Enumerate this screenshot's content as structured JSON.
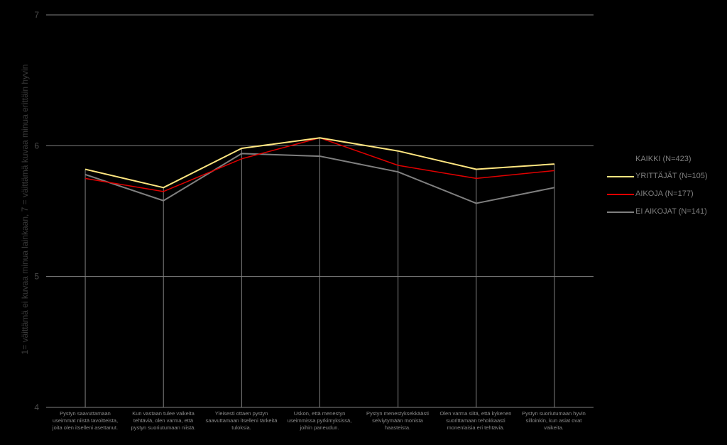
{
  "chart_data": {
    "type": "line",
    "ylabel": "1= väittämä ei kuvaa minua lainkaan, 7 = väittämä kuvaa minua erittäin hyvin",
    "xlabel": "",
    "ylim": [
      4,
      7
    ],
    "yticks": [
      "4",
      "5",
      "6",
      "7"
    ],
    "grid": true,
    "legend_position": "right",
    "categories": [
      "Pystyn saavuttamaan useimmat niistä tavoitteista, joita olen itselleni asettanut.",
      "Kun vastaan tulee vaikeita tehtäviä, olen varma, että pystyn suoriutumaan niistä.",
      "Yleisesti ottaen pystyn saavuttamaan itselleni tärkeitä tuloksia.",
      "Uskon, että menestyn useimmissa pyrkimyksissä, joihin paneudun.",
      "Pystyn menestyksekkäästi selviytymään monista haasteista.",
      "Olen varma siitä, että kykenen suorittamaan tehokkaasti monenlaisia eri tehtäviä.",
      "Pystyn suoriutumaan hyvin silloinkin, kun asiat ovat vaikeita."
    ],
    "legend_title": "KAIKKI (N=423)",
    "series": [
      {
        "name": "YRITTÄJÄT (N=105)",
        "color": "#ffe680",
        "width": 2,
        "values": [
          5.82,
          5.68,
          5.98,
          6.06,
          5.96,
          5.82,
          5.86
        ]
      },
      {
        "name": "AIKOJA (N=177)",
        "color": "#e00000",
        "width": 1.5,
        "values": [
          5.75,
          5.65,
          5.9,
          6.06,
          5.85,
          5.75,
          5.81
        ]
      },
      {
        "name": "EI AIKOJAT (N=141)",
        "color": "#7f7f7f",
        "width": 2,
        "values": [
          5.78,
          5.58,
          5.94,
          5.92,
          5.8,
          5.56,
          5.68
        ]
      }
    ],
    "axis_color": "#7f7f7f",
    "tick_label_color": "#4a4a4a"
  }
}
